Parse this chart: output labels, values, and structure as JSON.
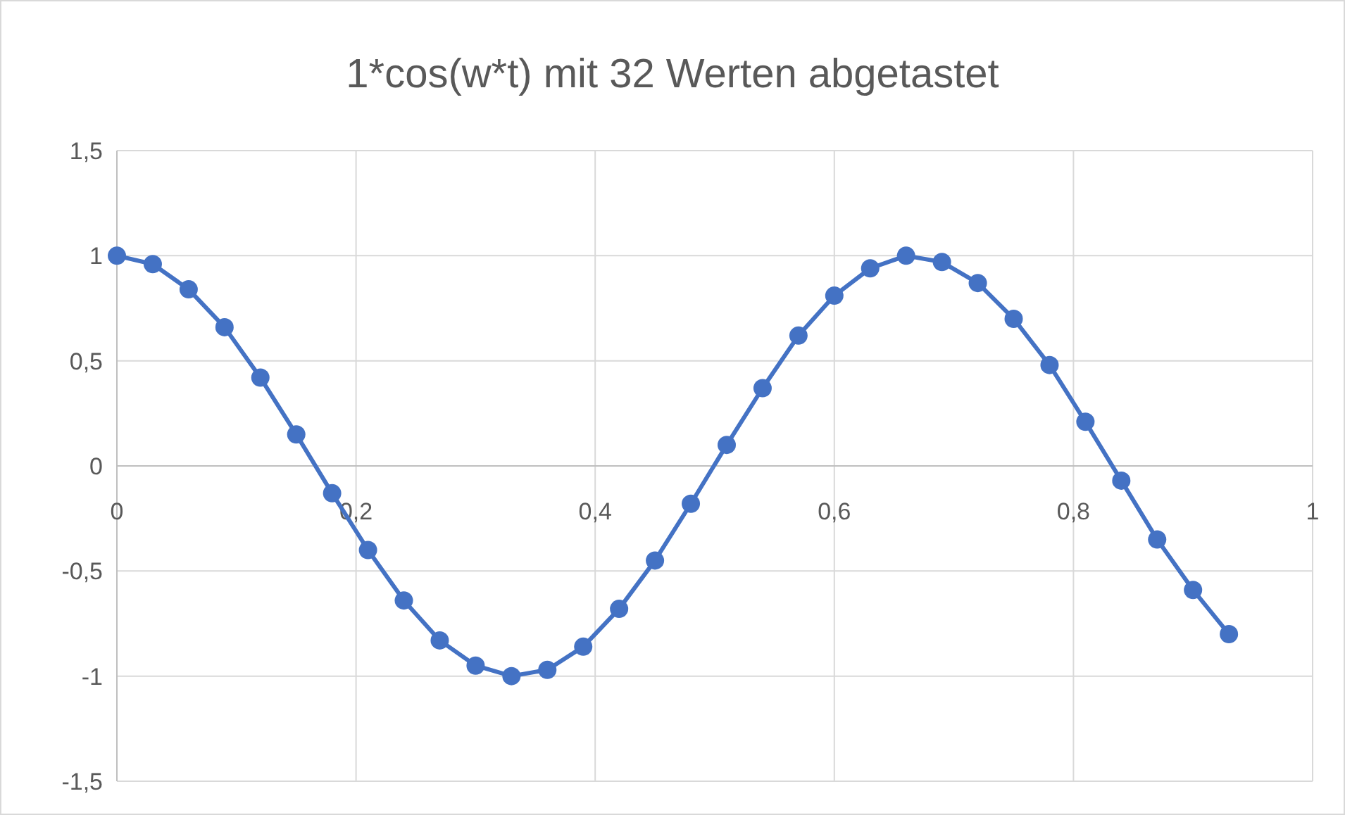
{
  "chart_data": {
    "type": "line",
    "title": "1*cos(w*t) mit 32 Werten abgetastet",
    "x": [
      0,
      0.03,
      0.06,
      0.09,
      0.12,
      0.15,
      0.18,
      0.21,
      0.24,
      0.27,
      0.3,
      0.33,
      0.36,
      0.39,
      0.42,
      0.45,
      0.48,
      0.51,
      0.54,
      0.57,
      0.6,
      0.63,
      0.66,
      0.69,
      0.72,
      0.75,
      0.78,
      0.81,
      0.84,
      0.87,
      0.9,
      0.93
    ],
    "series": [
      {
        "color": "#4472c4",
        "values": [
          1,
          0.96,
          0.84,
          0.66,
          0.42,
          0.15,
          -0.13,
          -0.4,
          -0.64,
          -0.83,
          -0.95,
          -1,
          -0.97,
          -0.86,
          -0.68,
          -0.45,
          -0.18,
          0.1,
          0.37,
          0.62,
          0.81,
          0.94,
          1,
          0.97,
          0.87,
          0.7,
          0.48,
          0.21,
          -0.07,
          -0.35,
          -0.59,
          -0.8
        ]
      }
    ],
    "xlim": [
      0,
      1
    ],
    "xticks": [
      0,
      {
        "value": 0.2,
        "label": "0,2"
      },
      {
        "value": 0.4,
        "label": "0,4"
      },
      {
        "value": 0.6,
        "label": "0,6"
      },
      {
        "value": 0.8,
        "label": "0,8"
      },
      1
    ],
    "ylim": [
      -1.5,
      1.5
    ],
    "yticks": [
      {
        "value": -1.5,
        "label": "-1,5"
      },
      -1,
      {
        "value": -0.5,
        "label": "-0,5"
      },
      0,
      {
        "value": 0.5,
        "label": "0,5"
      },
      1,
      {
        "value": 1.5,
        "label": "1,5"
      }
    ],
    "grid": true,
    "marker": "circle",
    "line_style": "solid"
  }
}
